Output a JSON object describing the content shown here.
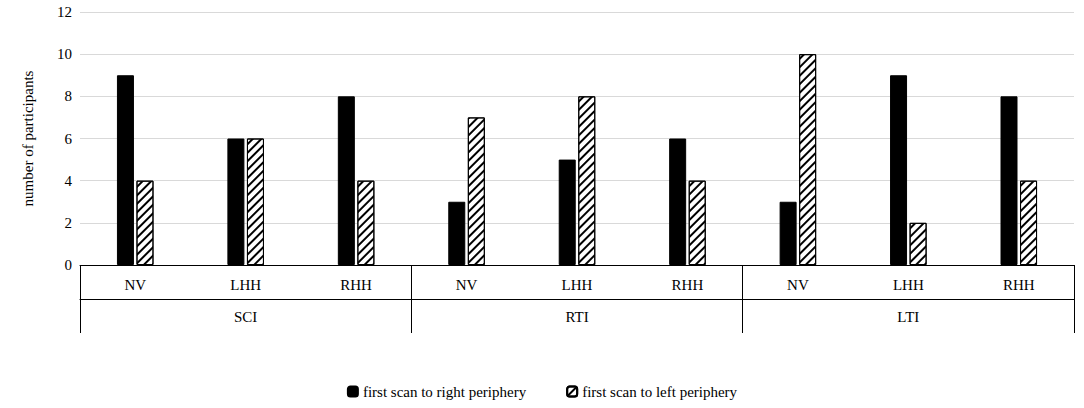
{
  "chart_data": {
    "type": "bar",
    "y_label": "number of participants",
    "categories": [
      "NV",
      "LHH",
      "RHH",
      "NV",
      "LHH",
      "RHH",
      "NV",
      "LHH",
      "RHH"
    ],
    "category_groups": [
      "SCI",
      "RTI",
      "LTI"
    ],
    "series": [
      {
        "name": "first scan to right periphery",
        "color": "#000000",
        "values": [
          9,
          6,
          8,
          3,
          5,
          6,
          3,
          9,
          8
        ]
      },
      {
        "name": "first scan to left periphery",
        "color": "#ffffff",
        "values": [
          4,
          6,
          4,
          7,
          8,
          4,
          10,
          2,
          4
        ]
      }
    ],
    "ylim": [
      0,
      12
    ],
    "yticks": [
      0,
      2,
      4,
      6,
      8,
      10,
      12
    ],
    "grid": true,
    "legend": "bottom"
  }
}
